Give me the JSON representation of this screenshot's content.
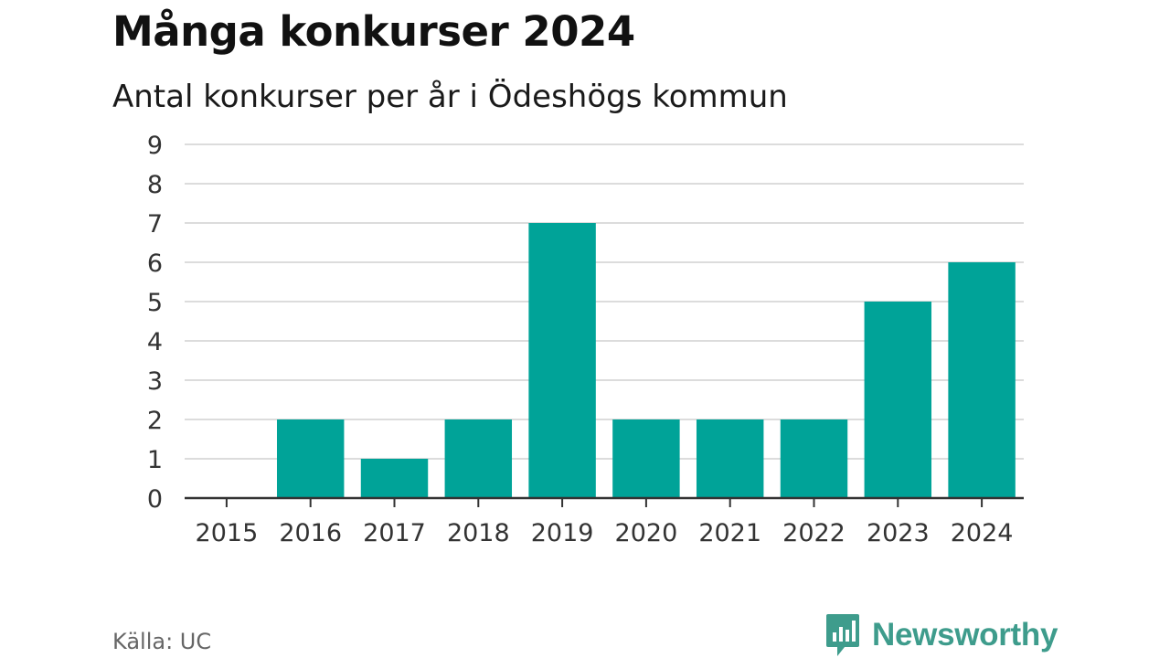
{
  "chart_data": {
    "type": "bar",
    "title": "Många konkurser 2024",
    "subtitle": "Antal konkurser per år i Ödeshögs kommun",
    "categories": [
      "2015",
      "2016",
      "2017",
      "2018",
      "2019",
      "2020",
      "2021",
      "2022",
      "2023",
      "2024"
    ],
    "values": [
      0,
      2,
      1,
      2,
      7,
      2,
      2,
      2,
      5,
      6
    ],
    "yticks": [
      0,
      1,
      2,
      3,
      4,
      5,
      6,
      7,
      8,
      9
    ],
    "ylim": [
      0,
      9
    ],
    "grid": true,
    "bar_color": "#00a398"
  },
  "footer": {
    "source": "Källa: UC",
    "brand": "Newsworthy",
    "brand_color": "#3e9c8c"
  }
}
